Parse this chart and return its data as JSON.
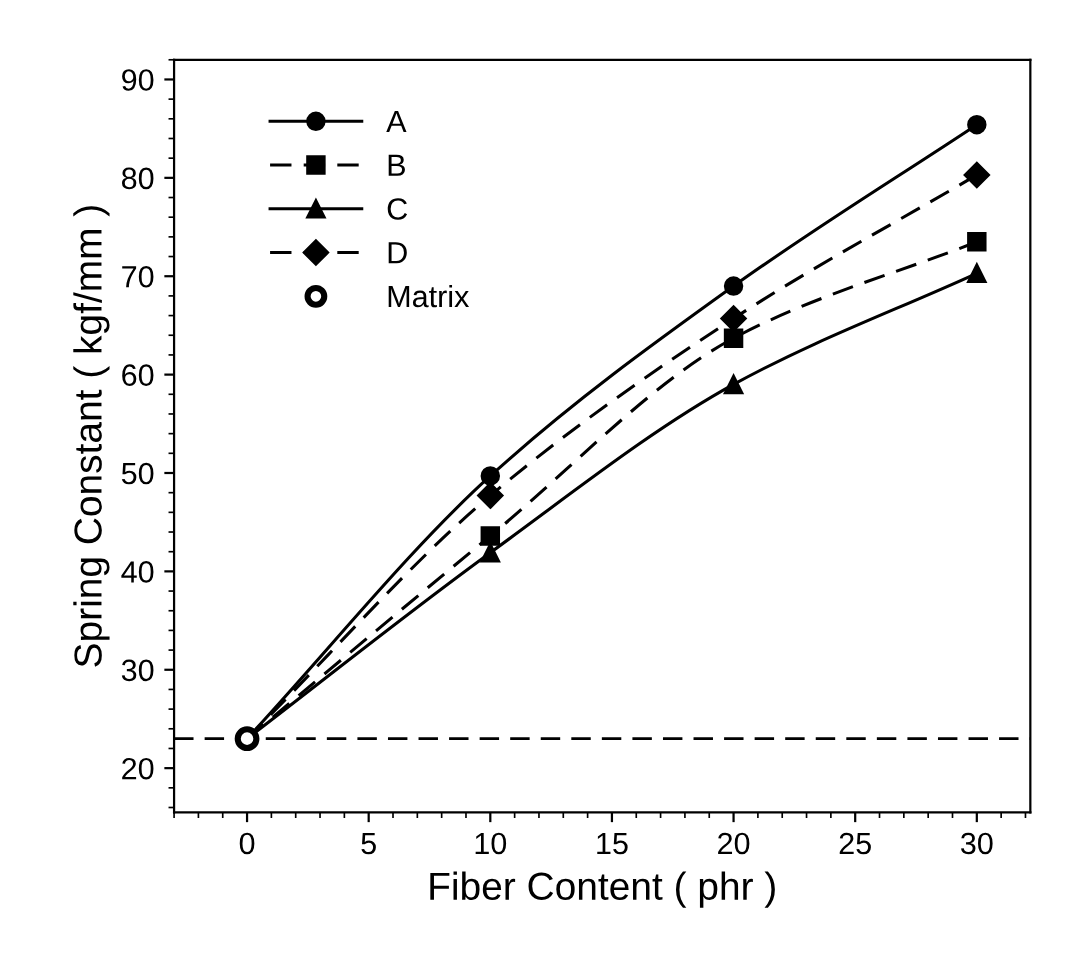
{
  "chart_data": {
    "type": "line",
    "xlabel": "Fiber Content ( phr )",
    "ylabel": "Spring Constant ( kgf/mm )",
    "series": [
      {
        "name": "A",
        "color": "#000000",
        "marker": "circle",
        "line_style": "solid",
        "x": [
          0,
          10,
          20,
          30
        ],
        "values": [
          23,
          49.7,
          69,
          85.4
        ]
      },
      {
        "name": "B",
        "color": "#000000",
        "marker": "square",
        "line_style": "dashed",
        "x": [
          0,
          10,
          20,
          30
        ],
        "values": [
          23,
          43.6,
          63.7,
          73.5
        ]
      },
      {
        "name": "C",
        "color": "#000000",
        "marker": "triangle",
        "line_style": "solid",
        "x": [
          0,
          10,
          20,
          30
        ],
        "values": [
          23,
          41.9,
          59,
          70.3
        ]
      },
      {
        "name": "D",
        "color": "#000000",
        "marker": "diamond",
        "line_style": "dashed",
        "x": [
          0,
          10,
          20,
          30
        ],
        "values": [
          23,
          47.7,
          65.7,
          80.3
        ]
      },
      {
        "name": "Matrix",
        "type": "scatter",
        "color": "#000000",
        "marker": "circle",
        "x": [
          0
        ],
        "values": [
          23
        ]
      }
    ],
    "ref_lines": [
      {
        "axis": "y",
        "value": 23,
        "color": "#000000",
        "line_style": "dashed"
      }
    ],
    "xlim": [
      -3,
      32.2
    ],
    "ylim": [
      15.5,
      92
    ],
    "xticks": [
      0,
      5,
      10,
      15,
      20,
      25,
      30
    ],
    "yticks": [
      20,
      30,
      40,
      50,
      60,
      70,
      80,
      90
    ],
    "legend": "top left",
    "grid": false
  }
}
